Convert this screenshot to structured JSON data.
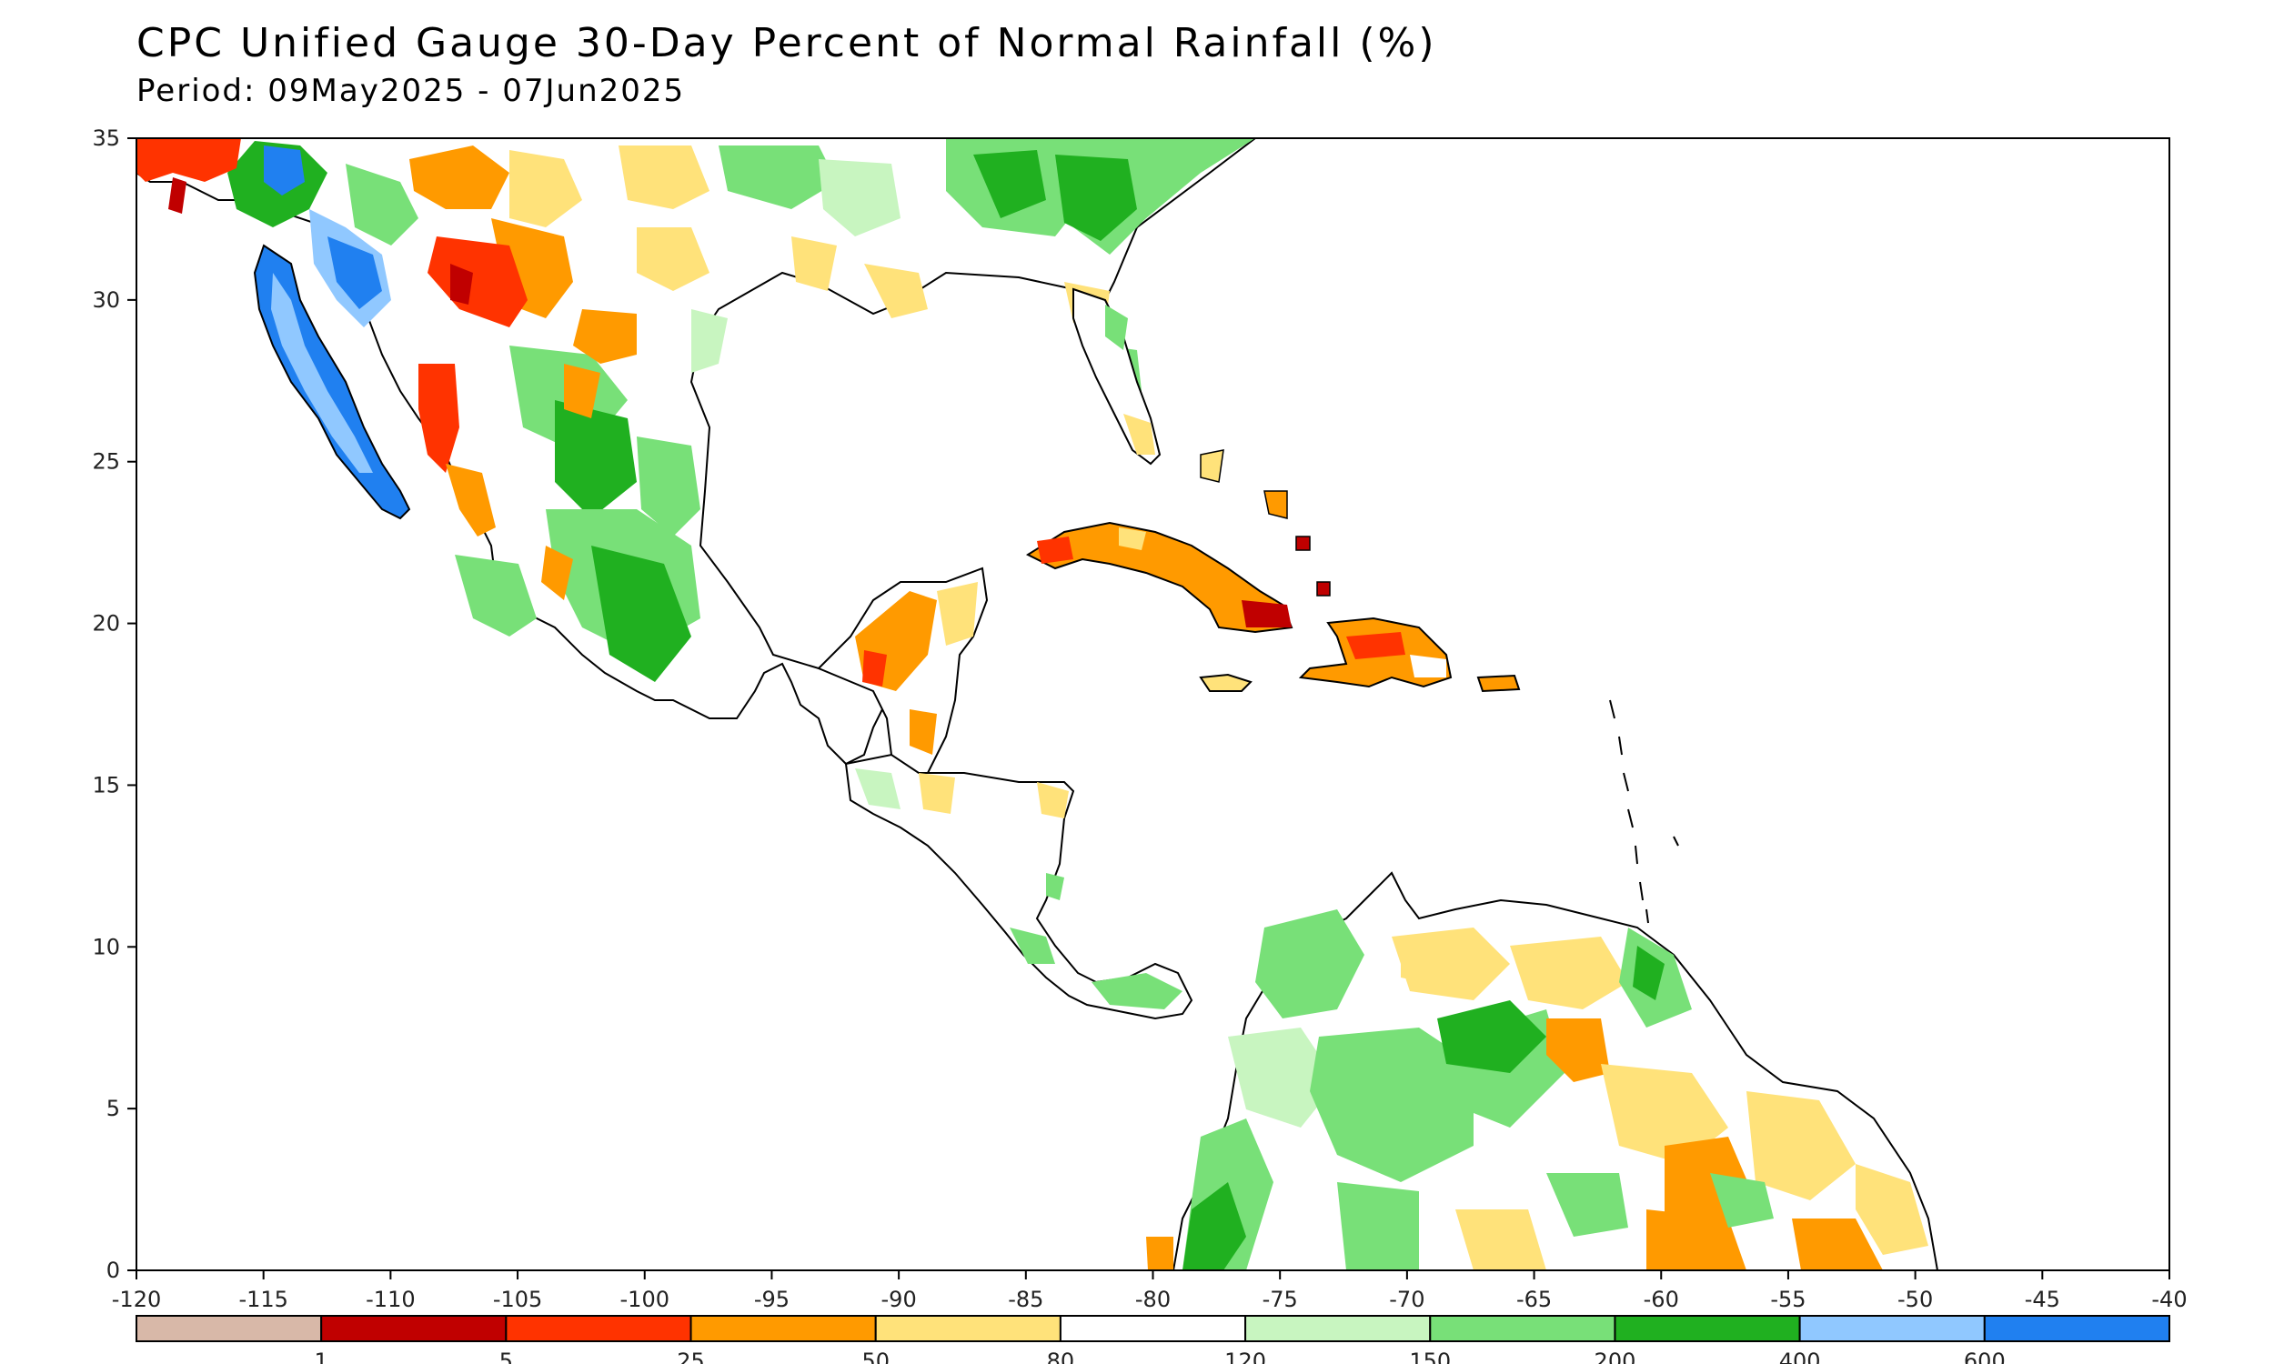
{
  "title": "CPC Unified Gauge 30-Day Percent of Normal Rainfall (%)",
  "subtitle": "Period: 09May2025 - 07Jun2025",
  "axes": {
    "x_ticks": [
      "-120",
      "-115",
      "-110",
      "-105",
      "-100",
      "-95",
      "-90",
      "-85",
      "-80",
      "-75",
      "-70",
      "-65",
      "-60",
      "-55",
      "-50",
      "-45",
      "-40"
    ],
    "y_ticks": [
      "35",
      "30",
      "25",
      "20",
      "15",
      "10",
      "5",
      "0"
    ]
  },
  "legend": {
    "bins": [
      {
        "color": "#d8b8a8",
        "label": "1"
      },
      {
        "color": "#c00000",
        "label": "5"
      },
      {
        "color": "#ff3300",
        "label": "25"
      },
      {
        "color": "#ff9a00",
        "label": "50"
      },
      {
        "color": "#ffe27a",
        "label": "80"
      },
      {
        "color": "#ffffff",
        "label": "120"
      },
      {
        "color": "#c8f5c0",
        "label": "150"
      },
      {
        "color": "#78e078",
        "label": "200"
      },
      {
        "color": "#20b020",
        "label": "400"
      },
      {
        "color": "#90c8ff",
        "label": "600"
      },
      {
        "color": "#2080f0",
        "label": ""
      }
    ]
  }
}
